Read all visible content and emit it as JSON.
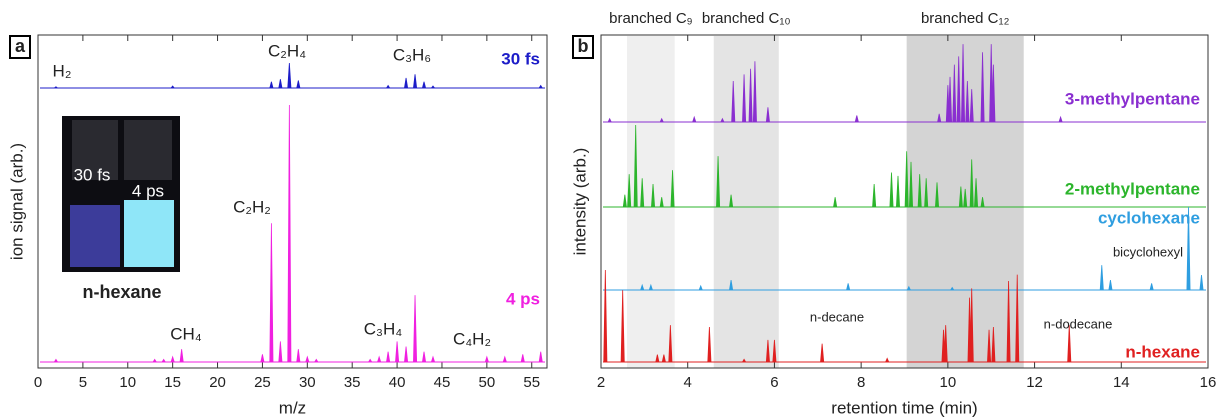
{
  "chart_data": [
    {
      "type": "stem",
      "panel_label": "a",
      "xlabel": "m/z",
      "ylabel": "ion signal (arb.)",
      "xlim": [
        0,
        56.7
      ],
      "xticks": [
        0,
        5,
        10,
        15,
        20,
        25,
        30,
        35,
        40,
        45,
        50,
        55
      ],
      "series": [
        {
          "name": "30 fs",
          "color": "#1c1cc8",
          "x": [
            2,
            15,
            26,
            27,
            28,
            29,
            39,
            41,
            42,
            43,
            44,
            56
          ],
          "values": [
            5,
            8,
            25,
            35,
            100,
            30,
            10,
            40,
            55,
            25,
            8,
            10
          ]
        },
        {
          "name": "4 ps",
          "color": "#f020e0",
          "x": [
            2,
            13,
            14,
            15,
            16,
            25,
            26,
            27,
            28,
            29,
            30,
            31,
            37,
            38,
            39,
            40,
            41,
            42,
            43,
            44,
            50,
            52,
            54,
            56
          ],
          "values": [
            1,
            1,
            1,
            2,
            5,
            3,
            54,
            8,
            100,
            5,
            2,
            1,
            1,
            2,
            4,
            8,
            6,
            26,
            4,
            2,
            2,
            2,
            3,
            4
          ]
        }
      ],
      "annotations": [
        "H₂",
        "C₂H₄",
        "C₃H₆",
        "C₂H₂",
        "CH₄",
        "C₃H₄",
        "C₄H₂"
      ],
      "inset": {
        "left_label": "30 fs",
        "right_label": "4 ps",
        "caption": "n-hexane"
      }
    },
    {
      "type": "stem",
      "panel_label": "b",
      "xlabel": "retention time (min)",
      "ylabel": "intensity (arb.)",
      "xlim": [
        2,
        16
      ],
      "xticks": [
        2,
        4,
        6,
        8,
        10,
        12,
        14,
        16
      ],
      "regions": [
        {
          "label": "branched C₉",
          "x0": 2.6,
          "x1": 3.7,
          "color": "#efefef"
        },
        {
          "label": "branched C₁₀",
          "x0": 4.6,
          "x1": 6.1,
          "color": "#e4e4e4"
        },
        {
          "label": "branched C₁₂",
          "x0": 9.05,
          "x1": 11.75,
          "color": "#d4d4d4"
        }
      ],
      "series": [
        {
          "name": "3-methylpentane",
          "color": "#8a2fd0",
          "x": [
            2.2,
            3.4,
            4.15,
            4.8,
            5.05,
            5.3,
            5.45,
            5.55,
            5.85,
            7.9,
            9.8,
            10.0,
            10.05,
            10.15,
            10.25,
            10.35,
            10.45,
            10.55,
            10.8,
            11.0,
            11.05,
            12.6
          ],
          "values": [
            4,
            4,
            6,
            4,
            50,
            58,
            65,
            74,
            18,
            8,
            10,
            45,
            55,
            70,
            80,
            95,
            50,
            40,
            85,
            95,
            70,
            6
          ]
        },
        {
          "name": "2-methylpentane",
          "color": "#2cb52c",
          "x": [
            2.55,
            2.65,
            2.8,
            2.95,
            3.2,
            3.4,
            3.65,
            4.7,
            5.0,
            7.4,
            8.3,
            8.7,
            8.85,
            9.05,
            9.15,
            9.35,
            9.5,
            9.75,
            10.3,
            10.4,
            10.55,
            10.65,
            10.8
          ],
          "values": [
            15,
            40,
            100,
            35,
            28,
            12,
            45,
            62,
            15,
            12,
            28,
            42,
            38,
            68,
            55,
            40,
            35,
            30,
            25,
            22,
            58,
            35,
            12
          ]
        },
        {
          "name": "cyclohexane",
          "color": "#2f9ee0",
          "x": [
            2.95,
            3.15,
            4.3,
            5.0,
            7.7,
            9.1,
            10.1,
            13.55,
            13.75,
            14.7,
            15.55,
            15.85
          ],
          "values": [
            6,
            6,
            5,
            12,
            8,
            4,
            3,
            30,
            12,
            8,
            100,
            18
          ]
        },
        {
          "name": "n-hexane",
          "color": "#e02020",
          "x": [
            2.1,
            2.5,
            3.3,
            3.45,
            3.6,
            4.5,
            5.3,
            5.85,
            6.0,
            7.1,
            8.6,
            9.9,
            9.95,
            10.5,
            10.55,
            10.95,
            11.05,
            11.4,
            11.6,
            12.8
          ],
          "values": [
            100,
            78,
            8,
            8,
            40,
            38,
            3,
            24,
            24,
            20,
            4,
            35,
            40,
            70,
            80,
            35,
            38,
            88,
            95,
            40
          ]
        }
      ],
      "annotations": [
        "bicyclohexyl",
        "n-decane",
        "n-dodecane"
      ]
    }
  ]
}
